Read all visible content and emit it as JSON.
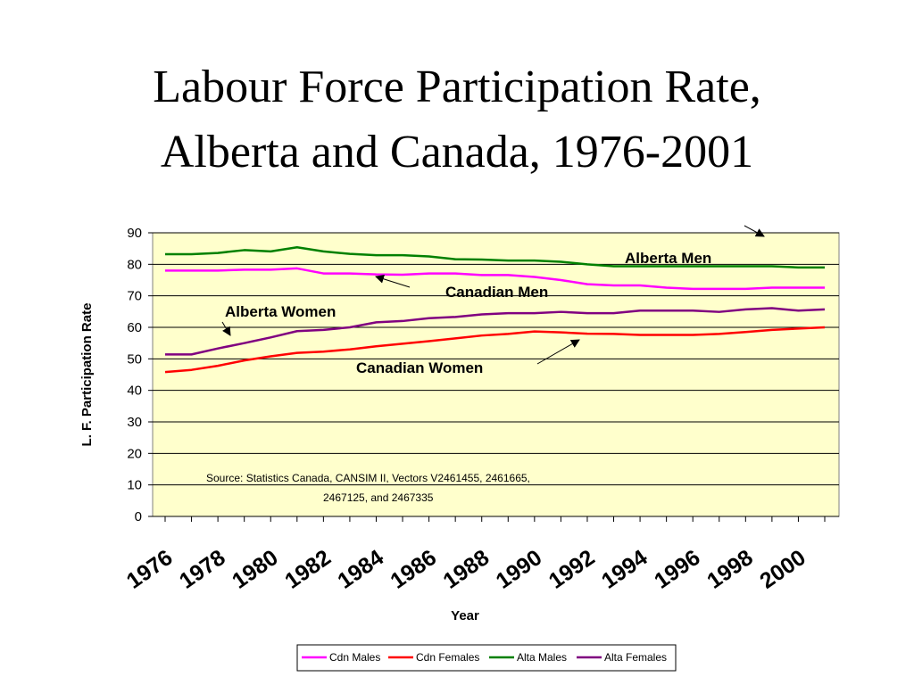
{
  "title": {
    "line1": "Labour Force Participation Rate,",
    "line2": "Alberta and Canada, 1976-2001"
  },
  "chart_data": {
    "type": "line",
    "title": "Labour Force Participation Rate, Alberta and Canada, 1976-2001",
    "xlabel": "Year",
    "ylabel": "L. F. Participation Rate",
    "ylim": [
      0,
      90
    ],
    "yticks": [
      0,
      10,
      20,
      30,
      40,
      50,
      60,
      70,
      80,
      90
    ],
    "xtick_labels": [
      "1976",
      "1978",
      "1980",
      "1982",
      "1984",
      "1986",
      "1988",
      "1990",
      "1992",
      "1994",
      "1996",
      "1998",
      "2000"
    ],
    "grid": "horizontal",
    "legend_position": "bottom",
    "x": [
      1976,
      1977,
      1978,
      1979,
      1980,
      1981,
      1982,
      1983,
      1984,
      1985,
      1986,
      1987,
      1988,
      1989,
      1990,
      1991,
      1992,
      1993,
      1994,
      1995,
      1996,
      1997,
      1998,
      1999,
      2000,
      2001
    ],
    "series": [
      {
        "name": "Cdn Males",
        "color": "#ff00ff",
        "values": [
          78.0,
          78.0,
          78.0,
          78.3,
          78.3,
          78.7,
          77.1,
          77.1,
          76.8,
          76.7,
          77.1,
          77.1,
          76.6,
          76.6,
          76.0,
          75.0,
          73.7,
          73.3,
          73.3,
          72.6,
          72.2,
          72.2,
          72.2,
          72.6,
          72.6,
          72.6
        ]
      },
      {
        "name": "Cdn Females",
        "color": "#ff0000",
        "values": [
          45.8,
          46.5,
          47.8,
          49.5,
          50.8,
          51.9,
          52.3,
          53.0,
          54.0,
          54.8,
          55.6,
          56.5,
          57.4,
          57.9,
          58.7,
          58.4,
          58.0,
          57.9,
          57.6,
          57.6,
          57.6,
          57.9,
          58.5,
          59.2,
          59.6,
          60.0
        ]
      },
      {
        "name": "Alta Males",
        "color": "#008000",
        "values": [
          83.2,
          83.2,
          83.6,
          84.5,
          84.1,
          85.4,
          84.1,
          83.3,
          82.9,
          82.9,
          82.5,
          81.6,
          81.5,
          81.2,
          81.2,
          80.8,
          80.0,
          79.4,
          79.4,
          79.4,
          79.4,
          79.4,
          79.4,
          79.4,
          79.0,
          79.0
        ]
      },
      {
        "name": "Alta Females",
        "color": "#800080",
        "values": [
          51.4,
          51.4,
          53.3,
          55.0,
          56.8,
          58.8,
          59.2,
          60.0,
          61.6,
          62.0,
          62.9,
          63.3,
          64.1,
          64.5,
          64.5,
          64.9,
          64.5,
          64.5,
          65.3,
          65.3,
          65.3,
          64.9,
          65.7,
          66.1,
          65.3,
          65.7
        ]
      }
    ],
    "annotations": [
      {
        "text": "Alberta Men"
      },
      {
        "text": "Canadian Men"
      },
      {
        "text": "Alberta Women"
      },
      {
        "text": "Canadian Women"
      }
    ],
    "source_line1": "Source:  Statistics Canada, CANSIM II, Vectors V2461455, 2461665,",
    "source_line2": "2467125, and 2467335"
  }
}
